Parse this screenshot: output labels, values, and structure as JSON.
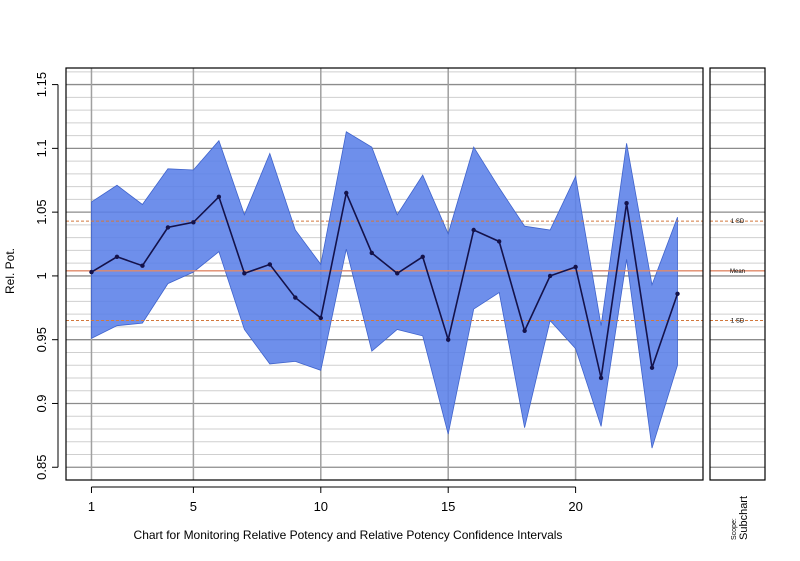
{
  "chart_data": {
    "type": "line",
    "title": "",
    "xlabel": "Chart for Monitoring Relative Potency and Relative Potency Confidence Intervals",
    "ylabel": "Rel. Pot.",
    "xlim": [
      0,
      25
    ],
    "ylim": [
      0.84,
      1.163
    ],
    "x_ticks": [
      1,
      5,
      10,
      15,
      20
    ],
    "y_ticks": [
      0.85,
      0.9,
      0.95,
      1,
      1.05,
      1.1,
      1.15
    ],
    "y_tick_labels": [
      "0.85",
      "0.9",
      "0.95",
      "1",
      "1.05",
      "1.1",
      "1.15"
    ],
    "x_tick_labels": [
      "1",
      "5",
      "10",
      "15",
      "20"
    ],
    "grid": true,
    "legend": "none",
    "x": [
      1,
      2,
      3,
      4,
      5,
      6,
      7,
      8,
      9,
      10,
      11,
      12,
      13,
      14,
      15,
      16,
      17,
      18,
      19,
      20,
      21,
      22,
      23,
      24
    ],
    "series": [
      {
        "values": [
          1.003,
          1.015,
          1.008,
          1.038,
          1.042,
          1.062,
          1.002,
          1.009,
          0.983,
          0.967,
          1.065,
          1.018,
          1.002,
          1.015,
          0.95,
          1.036,
          1.027,
          0.957,
          1.0,
          1.007,
          0.92,
          1.057,
          0.928,
          0.986
        ],
        "color": "#14124a"
      }
    ],
    "band": {
      "upper": [
        1.058,
        1.071,
        1.056,
        1.084,
        1.083,
        1.106,
        1.048,
        1.096,
        1.036,
        1.009,
        1.113,
        1.101,
        1.048,
        1.079,
        1.033,
        1.101,
        1.069,
        1.039,
        1.036,
        1.078,
        0.961,
        1.104,
        0.993,
        1.046
      ],
      "lower": [
        0.951,
        0.961,
        0.963,
        0.994,
        1.003,
        1.019,
        0.958,
        0.931,
        0.933,
        0.926,
        1.021,
        0.941,
        0.958,
        0.953,
        0.876,
        0.974,
        0.987,
        0.881,
        0.965,
        0.943,
        0.882,
        1.013,
        0.865,
        0.93
      ],
      "color": "#5a80e8"
    },
    "reference_lines": [
      {
        "label": "1 SD",
        "value": 1.043,
        "color": "#d2783c",
        "style": "dashed"
      },
      {
        "label": "Mean",
        "value": 1.004,
        "color": "#e08a6a",
        "style": "solid"
      },
      {
        "label": "1 SD",
        "value": 0.965,
        "color": "#d2783c",
        "style": "dashed"
      }
    ]
  },
  "scope_panel": {
    "title": "Scope:",
    "value": "Subchart"
  }
}
